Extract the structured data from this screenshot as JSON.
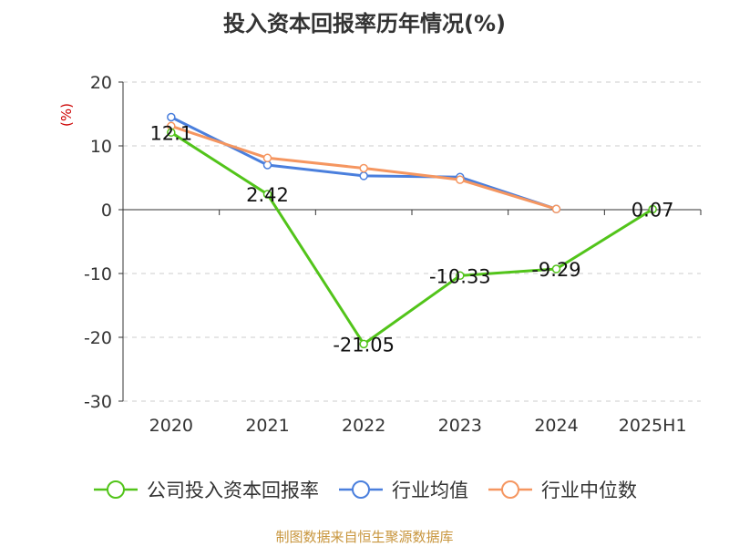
{
  "title": "投入资本回报率历年情况(%)",
  "source": "制图数据来自恒生聚源数据库",
  "chart_data": {
    "type": "line",
    "unit_label": "(%)",
    "categories": [
      "2020",
      "2021",
      "2022",
      "2023",
      "2024",
      "2025H1"
    ],
    "ylim": [
      -30,
      20
    ],
    "yticks": [
      20,
      10,
      0,
      -10,
      -20,
      -30
    ],
    "grid": true,
    "legend_position": "bottom",
    "series": [
      {
        "name": "公司投入资本回报率",
        "color": "#52c41a",
        "values": [
          12.1,
          2.42,
          -21.05,
          -10.33,
          -9.29,
          0.07
        ],
        "labels": [
          "12.1",
          "2.42",
          "-21.05",
          "-10.33",
          "-9.29",
          "0.07"
        ]
      },
      {
        "name": "行业均值",
        "color": "#4a7fdd",
        "values": [
          14.5,
          7.0,
          5.3,
          5.1,
          0.1,
          null
        ]
      },
      {
        "name": "行业中位数",
        "color": "#f59660",
        "values": [
          13.1,
          8.1,
          6.5,
          4.7,
          0.1,
          null
        ]
      }
    ]
  }
}
